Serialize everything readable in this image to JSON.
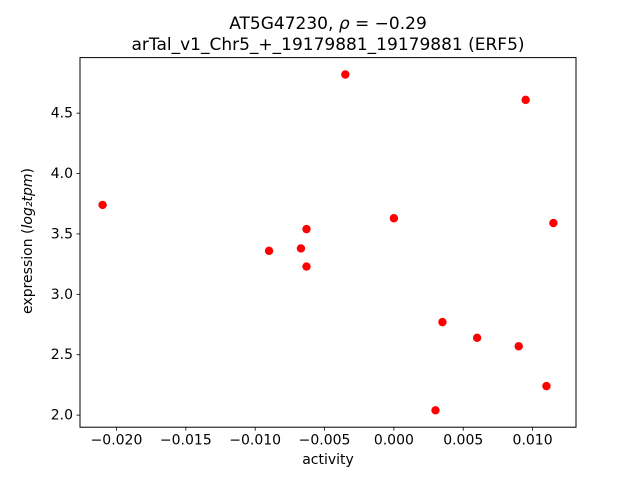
{
  "chart_data": {
    "type": "scatter",
    "title": {
      "prefix": "AT5G47230, ",
      "rho": "ρ",
      "suffix": " = −0.29"
    },
    "title_line2": "arTal_v1_Chr5_+_19179881_19179881 (ERF5)",
    "xlabel": "activity",
    "ylabel_prefix": "expression (",
    "ylabel_math": "log₂tpm",
    "ylabel_suffix": ")",
    "xlim": [
      -0.02263,
      0.01313
    ],
    "ylim": [
      1.9,
      4.96
    ],
    "xticks": [
      -0.02,
      -0.015,
      -0.01,
      -0.005,
      0.0,
      0.005,
      0.01
    ],
    "xtick_labels": [
      "−0.020",
      "−0.015",
      "−0.010",
      "−0.005",
      "0.000",
      "0.005",
      "0.010"
    ],
    "yticks": [
      2.0,
      2.5,
      3.0,
      3.5,
      4.0,
      4.5
    ],
    "ytick_labels": [
      "2.0",
      "2.5",
      "3.0",
      "3.5",
      "4.0",
      "4.5"
    ],
    "legend": "none",
    "grid": false,
    "marker_color": "#ff0000",
    "axis_color": "#000000",
    "points": [
      [
        -0.021,
        3.74
      ],
      [
        -0.009,
        3.36
      ],
      [
        -0.0067,
        3.38
      ],
      [
        -0.0063,
        3.54
      ],
      [
        -0.0063,
        3.23
      ],
      [
        -0.0035,
        4.82
      ],
      [
        0.0,
        3.63
      ],
      [
        0.003,
        2.04
      ],
      [
        0.0035,
        2.77
      ],
      [
        0.006,
        2.64
      ],
      [
        0.009,
        2.57
      ],
      [
        0.0095,
        4.61
      ],
      [
        0.011,
        2.24
      ],
      [
        0.0115,
        3.59
      ]
    ]
  }
}
